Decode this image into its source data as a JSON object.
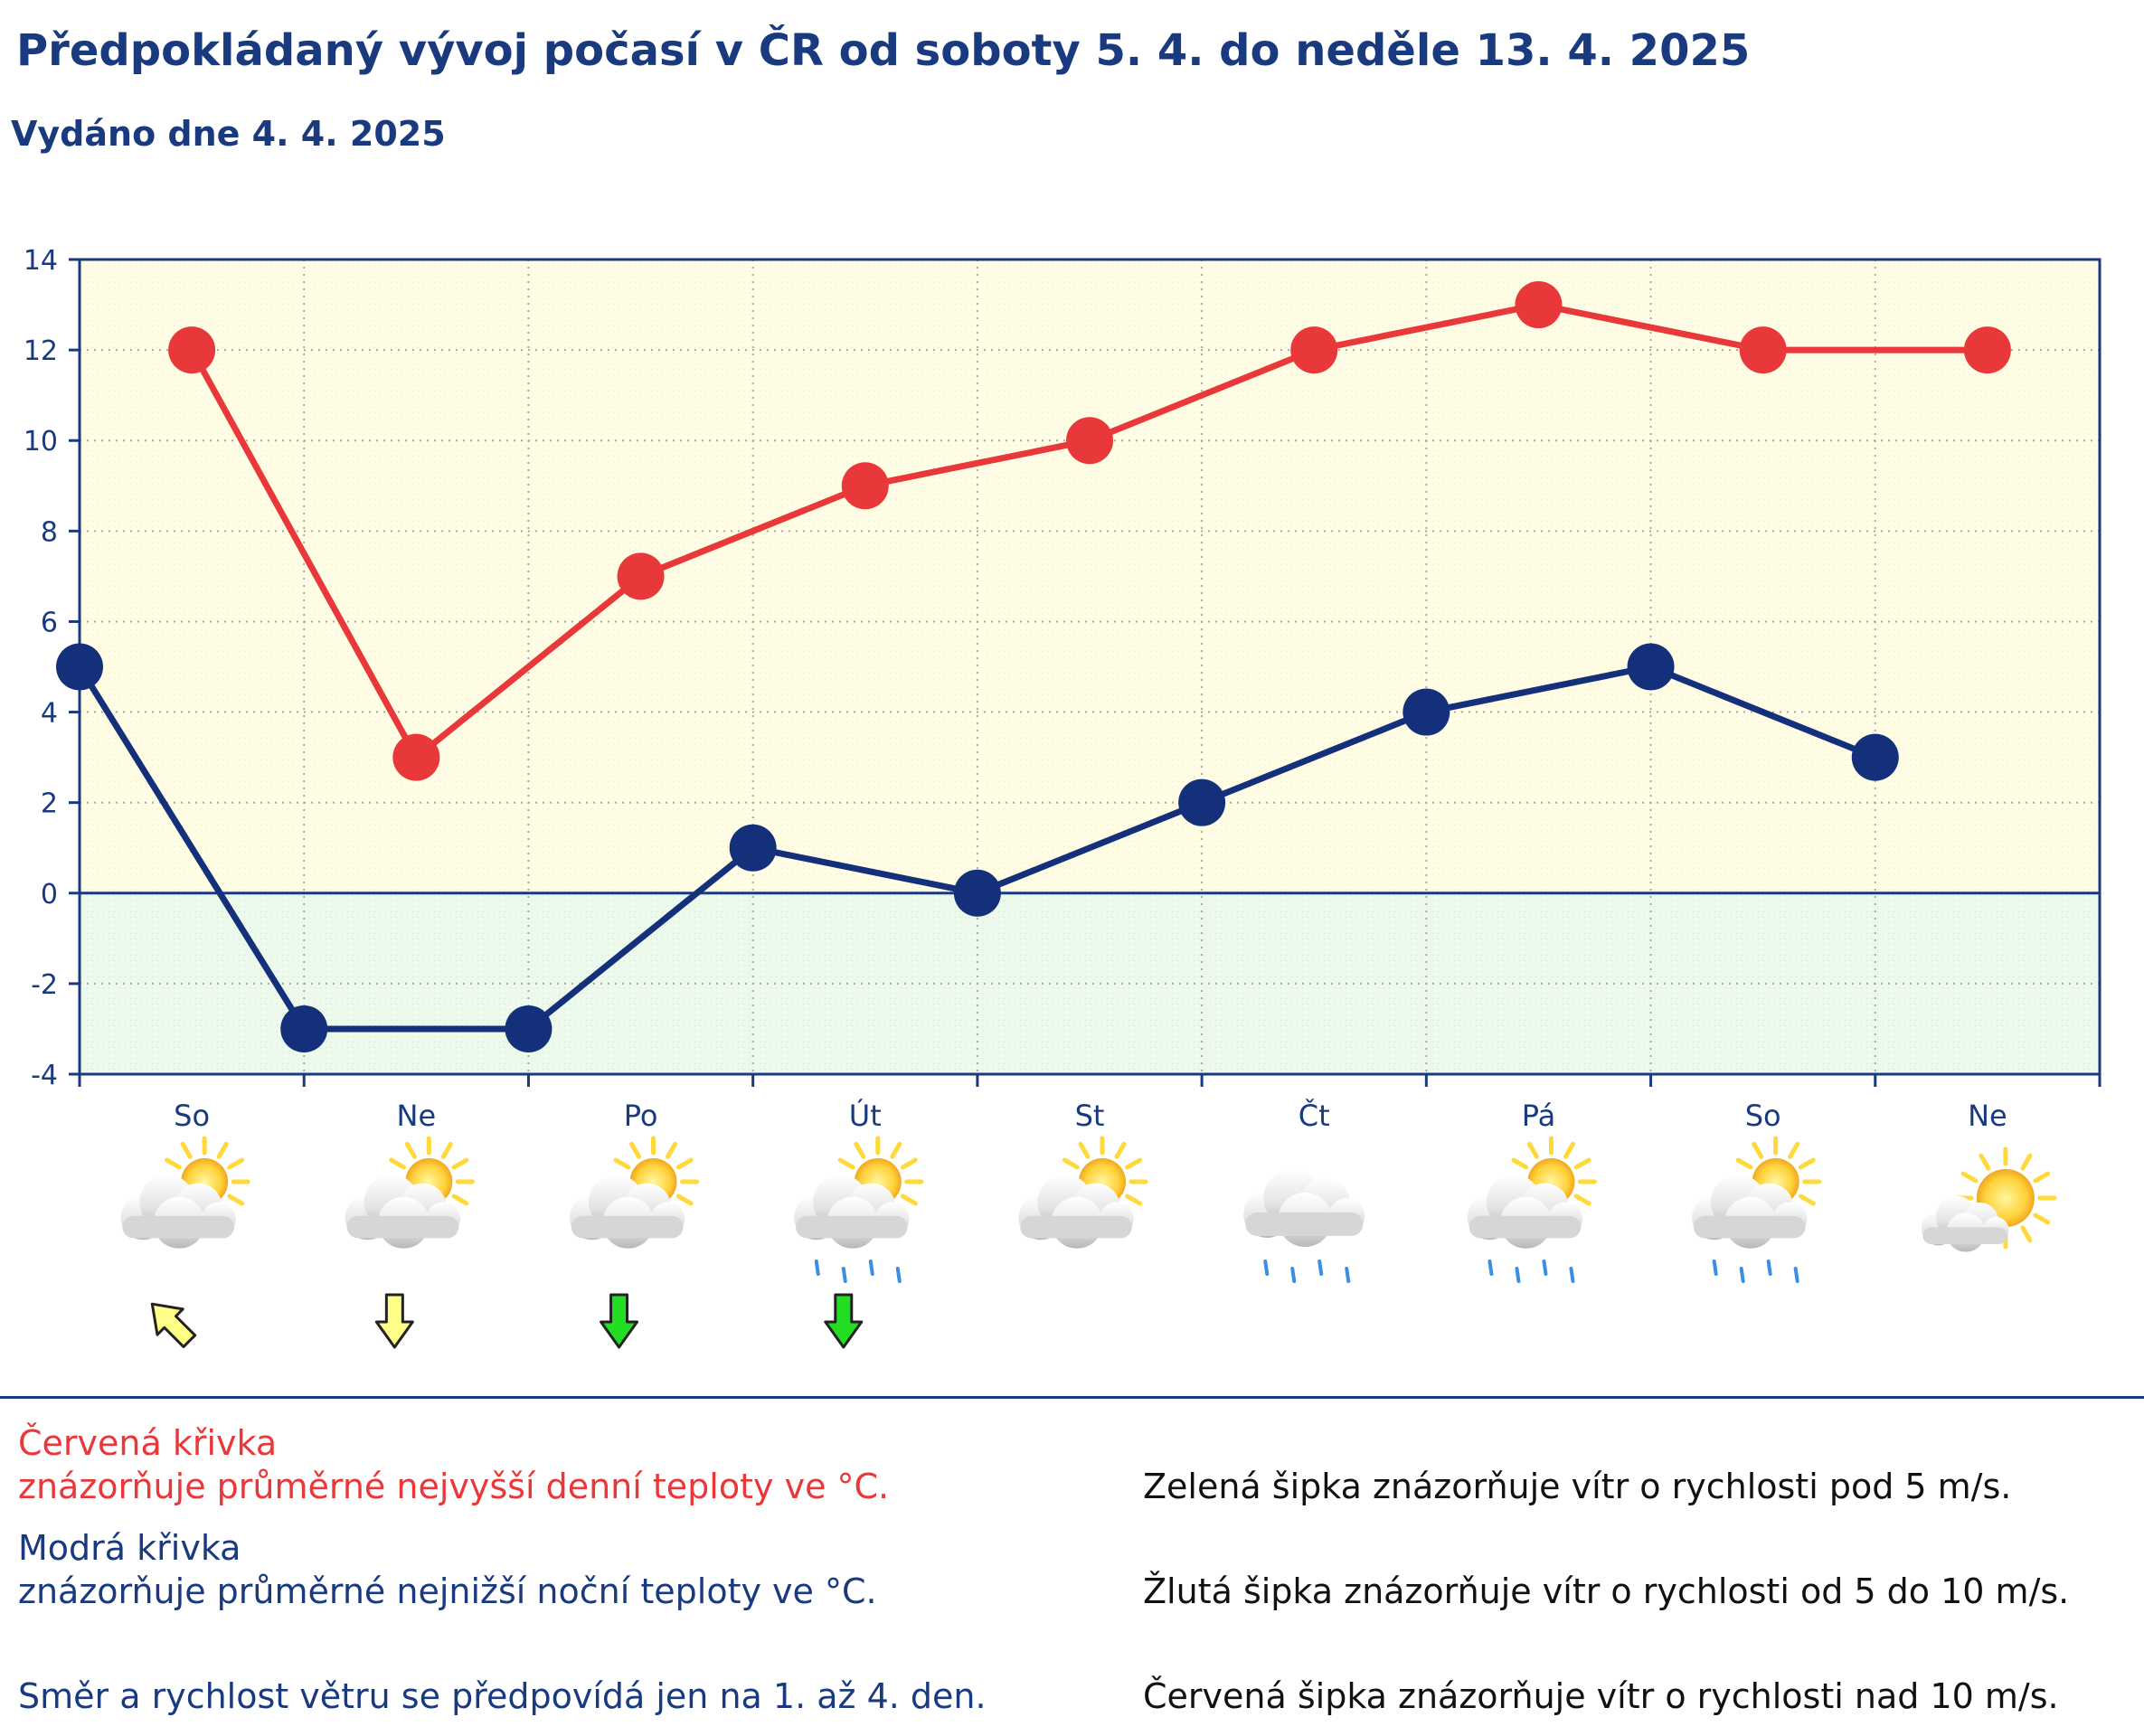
{
  "title": "Předpokládaný vývoj počasí v ČR od soboty 5. 4. do neděle 13. 4. 2025",
  "subtitle": "Vydáno dne 4. 4. 2025",
  "colors": {
    "max_line": "#e8383a",
    "min_line": "#15307a",
    "frame": "#1a3a80",
    "warm_bg": "#fffde6",
    "cold_bg": "#eef9ee",
    "wind_green": "#22dd22",
    "wind_yellow": "#ffff88"
  },
  "chart_data": {
    "type": "line",
    "ylim": [
      -4,
      14
    ],
    "yticks": [
      -4,
      -2,
      0,
      2,
      4,
      6,
      8,
      10,
      12,
      14
    ],
    "grid": true,
    "categories": [
      "So",
      "Ne",
      "Po",
      "Út",
      "St",
      "Čt",
      "Pá",
      "So",
      "Ne"
    ],
    "series": [
      {
        "name": "Červená křivka",
        "role": "max",
        "values": [
          12,
          3,
          7,
          9,
          10,
          12,
          13,
          12,
          12
        ]
      },
      {
        "name": "Modrá křivka",
        "role": "min",
        "values": [
          5,
          -3,
          -3,
          1,
          0,
          2,
          4,
          5,
          3
        ]
      }
    ],
    "weather_icons": [
      "partly-cloudy-icon",
      "partly-cloudy-icon",
      "partly-cloudy-icon",
      "partly-cloudy-rain-icon",
      "partly-cloudy-icon",
      "cloudy-rain-icon",
      "partly-cloudy-rain-icon",
      "partly-cloudy-rain-icon",
      "mostly-sunny-icon"
    ],
    "wind": [
      {
        "color": "yellow",
        "direction": "from-southeast"
      },
      {
        "color": "yellow",
        "direction": "from-north"
      },
      {
        "color": "green",
        "direction": "from-north"
      },
      {
        "color": "green",
        "direction": "from-north"
      }
    ]
  },
  "legend": {
    "red_title": "Červená křivka",
    "red_desc": "znázorňuje průměrné nejvyšší denní teploty ve °C.",
    "blue_title": "Modrá křivka",
    "blue_desc": "znázorňuje průměrné nejnižší noční teploty ve °C.",
    "wind_note": "Směr a rychlost větru se předpovídá jen na 1. až 4. den.",
    "green_arrow": "Zelená šipka znázorňuje vítr o rychlosti pod 5 m/s.",
    "yellow_arrow": "Žlutá šipka znázorňuje vítr o rychlosti od 5 do 10 m/s.",
    "red_arrow": "Červená šipka znázorňuje vítr o rychlosti nad 10 m/s."
  }
}
